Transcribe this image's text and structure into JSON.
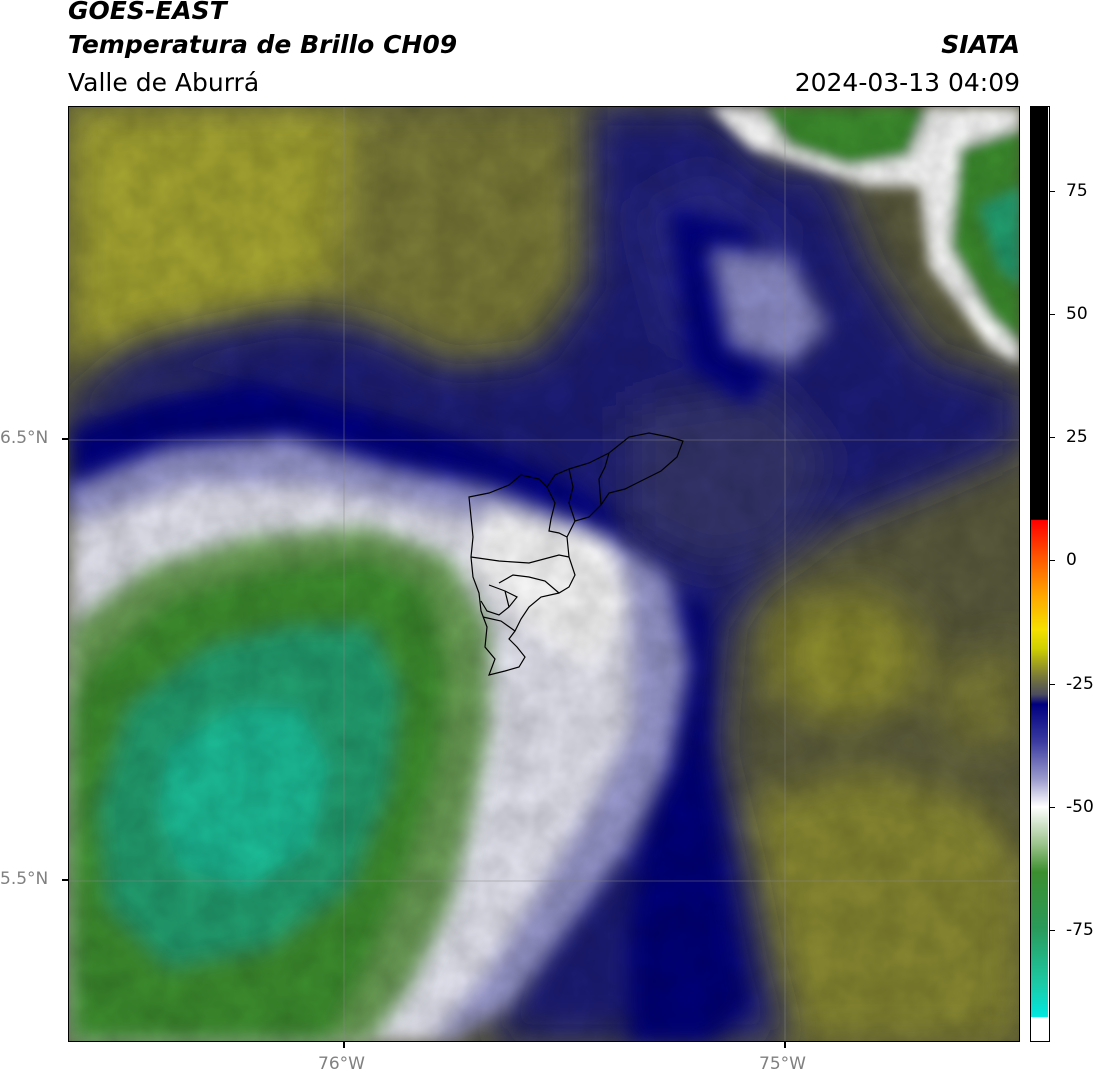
{
  "header": {
    "satellite": "GOES-EAST",
    "product": "Temperatura de Brillo CH09",
    "region": "Valle de Aburrá",
    "institution": "SIATA",
    "datetime": "2024-03-13 04:09"
  },
  "map": {
    "lat_labels": [
      "6.5°N",
      "5.5°N"
    ],
    "lon_labels": [
      "76°W",
      "75°W"
    ]
  },
  "colorbar": {
    "tick_labels": [
      "75",
      "50",
      "25",
      "0",
      "-25",
      "-50",
      "-75"
    ],
    "tick_values": [
      75,
      50,
      25,
      0,
      -25,
      -50,
      -75
    ],
    "range": [
      -95,
      91
    ],
    "colors": {
      "cyan": "#14e0d8",
      "green": "#3c8f2f",
      "white": "#ffffff",
      "navy": "#000080",
      "olive": "#8c8c2a",
      "yellow": "#f0f000",
      "orange": "#ff8000",
      "red": "#ff0000",
      "black": "#000000"
    }
  }
}
